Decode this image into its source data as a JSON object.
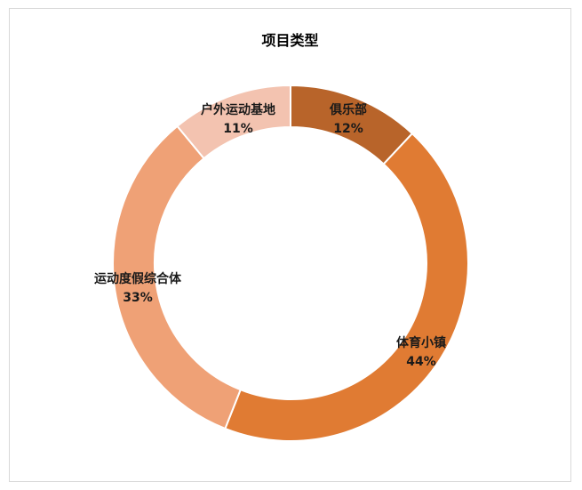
{
  "chart_data": {
    "type": "pie",
    "title": "项目类型",
    "categories": [
      "俱乐部",
      "体育小镇",
      "运动度假综合体",
      "户外运动基地"
    ],
    "values": [
      12,
      44,
      33,
      11
    ],
    "value_labels": [
      "12%",
      "44%",
      "33%",
      "11%"
    ],
    "colors": [
      "#b8642a",
      "#e07b33",
      "#efa176",
      "#f3c3b0"
    ],
    "donut": true,
    "legend": "none",
    "start_angle_deg": 0,
    "direction": "clockwise"
  }
}
